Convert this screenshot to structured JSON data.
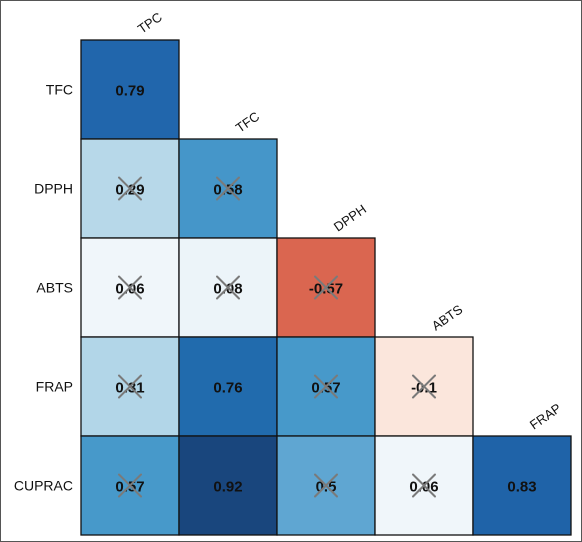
{
  "chart_data": {
    "type": "heatmap",
    "title": "",
    "layout": "lower-triangular correlation matrix",
    "rows": [
      "TFC",
      "DPPH",
      "ABTS",
      "FRAP",
      "CUPRAC"
    ],
    "columns": [
      "TPC",
      "TFC",
      "DPPH",
      "ABTS",
      "FRAP"
    ],
    "cells": [
      {
        "row": "TFC",
        "col": "TPC",
        "value": 0.79,
        "label": "0.79",
        "crossed": false
      },
      {
        "row": "DPPH",
        "col": "TPC",
        "value": 0.29,
        "label": "0.29",
        "crossed": true
      },
      {
        "row": "DPPH",
        "col": "TFC",
        "value": 0.58,
        "label": "0.58",
        "crossed": true
      },
      {
        "row": "ABTS",
        "col": "TPC",
        "value": 0.06,
        "label": "0.06",
        "crossed": true
      },
      {
        "row": "ABTS",
        "col": "TFC",
        "value": 0.08,
        "label": "0.08",
        "crossed": true
      },
      {
        "row": "ABTS",
        "col": "DPPH",
        "value": -0.57,
        "label": "-0.57",
        "crossed": true
      },
      {
        "row": "FRAP",
        "col": "TPC",
        "value": 0.31,
        "label": "0.31",
        "crossed": true
      },
      {
        "row": "FRAP",
        "col": "TFC",
        "value": 0.76,
        "label": "0.76",
        "crossed": false
      },
      {
        "row": "FRAP",
        "col": "DPPH",
        "value": 0.57,
        "label": "0.57",
        "crossed": true
      },
      {
        "row": "FRAP",
        "col": "ABTS",
        "value": -0.1,
        "label": "-0.1",
        "crossed": true
      },
      {
        "row": "CUPRAC",
        "col": "TPC",
        "value": 0.57,
        "label": "0.57",
        "crossed": true
      },
      {
        "row": "CUPRAC",
        "col": "TFC",
        "value": 0.92,
        "label": "0.92",
        "crossed": false
      },
      {
        "row": "CUPRAC",
        "col": "DPPH",
        "value": 0.5,
        "label": "0.5",
        "crossed": true
      },
      {
        "row": "CUPRAC",
        "col": "ABTS",
        "value": 0.06,
        "label": "0.06",
        "crossed": true
      },
      {
        "row": "CUPRAC",
        "col": "FRAP",
        "value": 0.83,
        "label": "0.83",
        "crossed": false
      }
    ],
    "colors": {
      "0.79": "#2166ac",
      "0.29": "#b7d8e9",
      "0.58": "#4596c9",
      "0.06": "#f0f6fa",
      "0.08": "#ecf4f9",
      "-0.57": "#da6650",
      "0.31": "#b2d6e8",
      "0.76": "#216bad",
      "0.57": "#4799ca",
      "-0.1": "#fbe6dc",
      "0.92": "#19467d",
      "0.5": "#5fa6d2",
      "0.83": "#1f63a8"
    },
    "color_scale": "diverging red-white-blue, -1 to 1",
    "legend": "none",
    "grid": false
  }
}
